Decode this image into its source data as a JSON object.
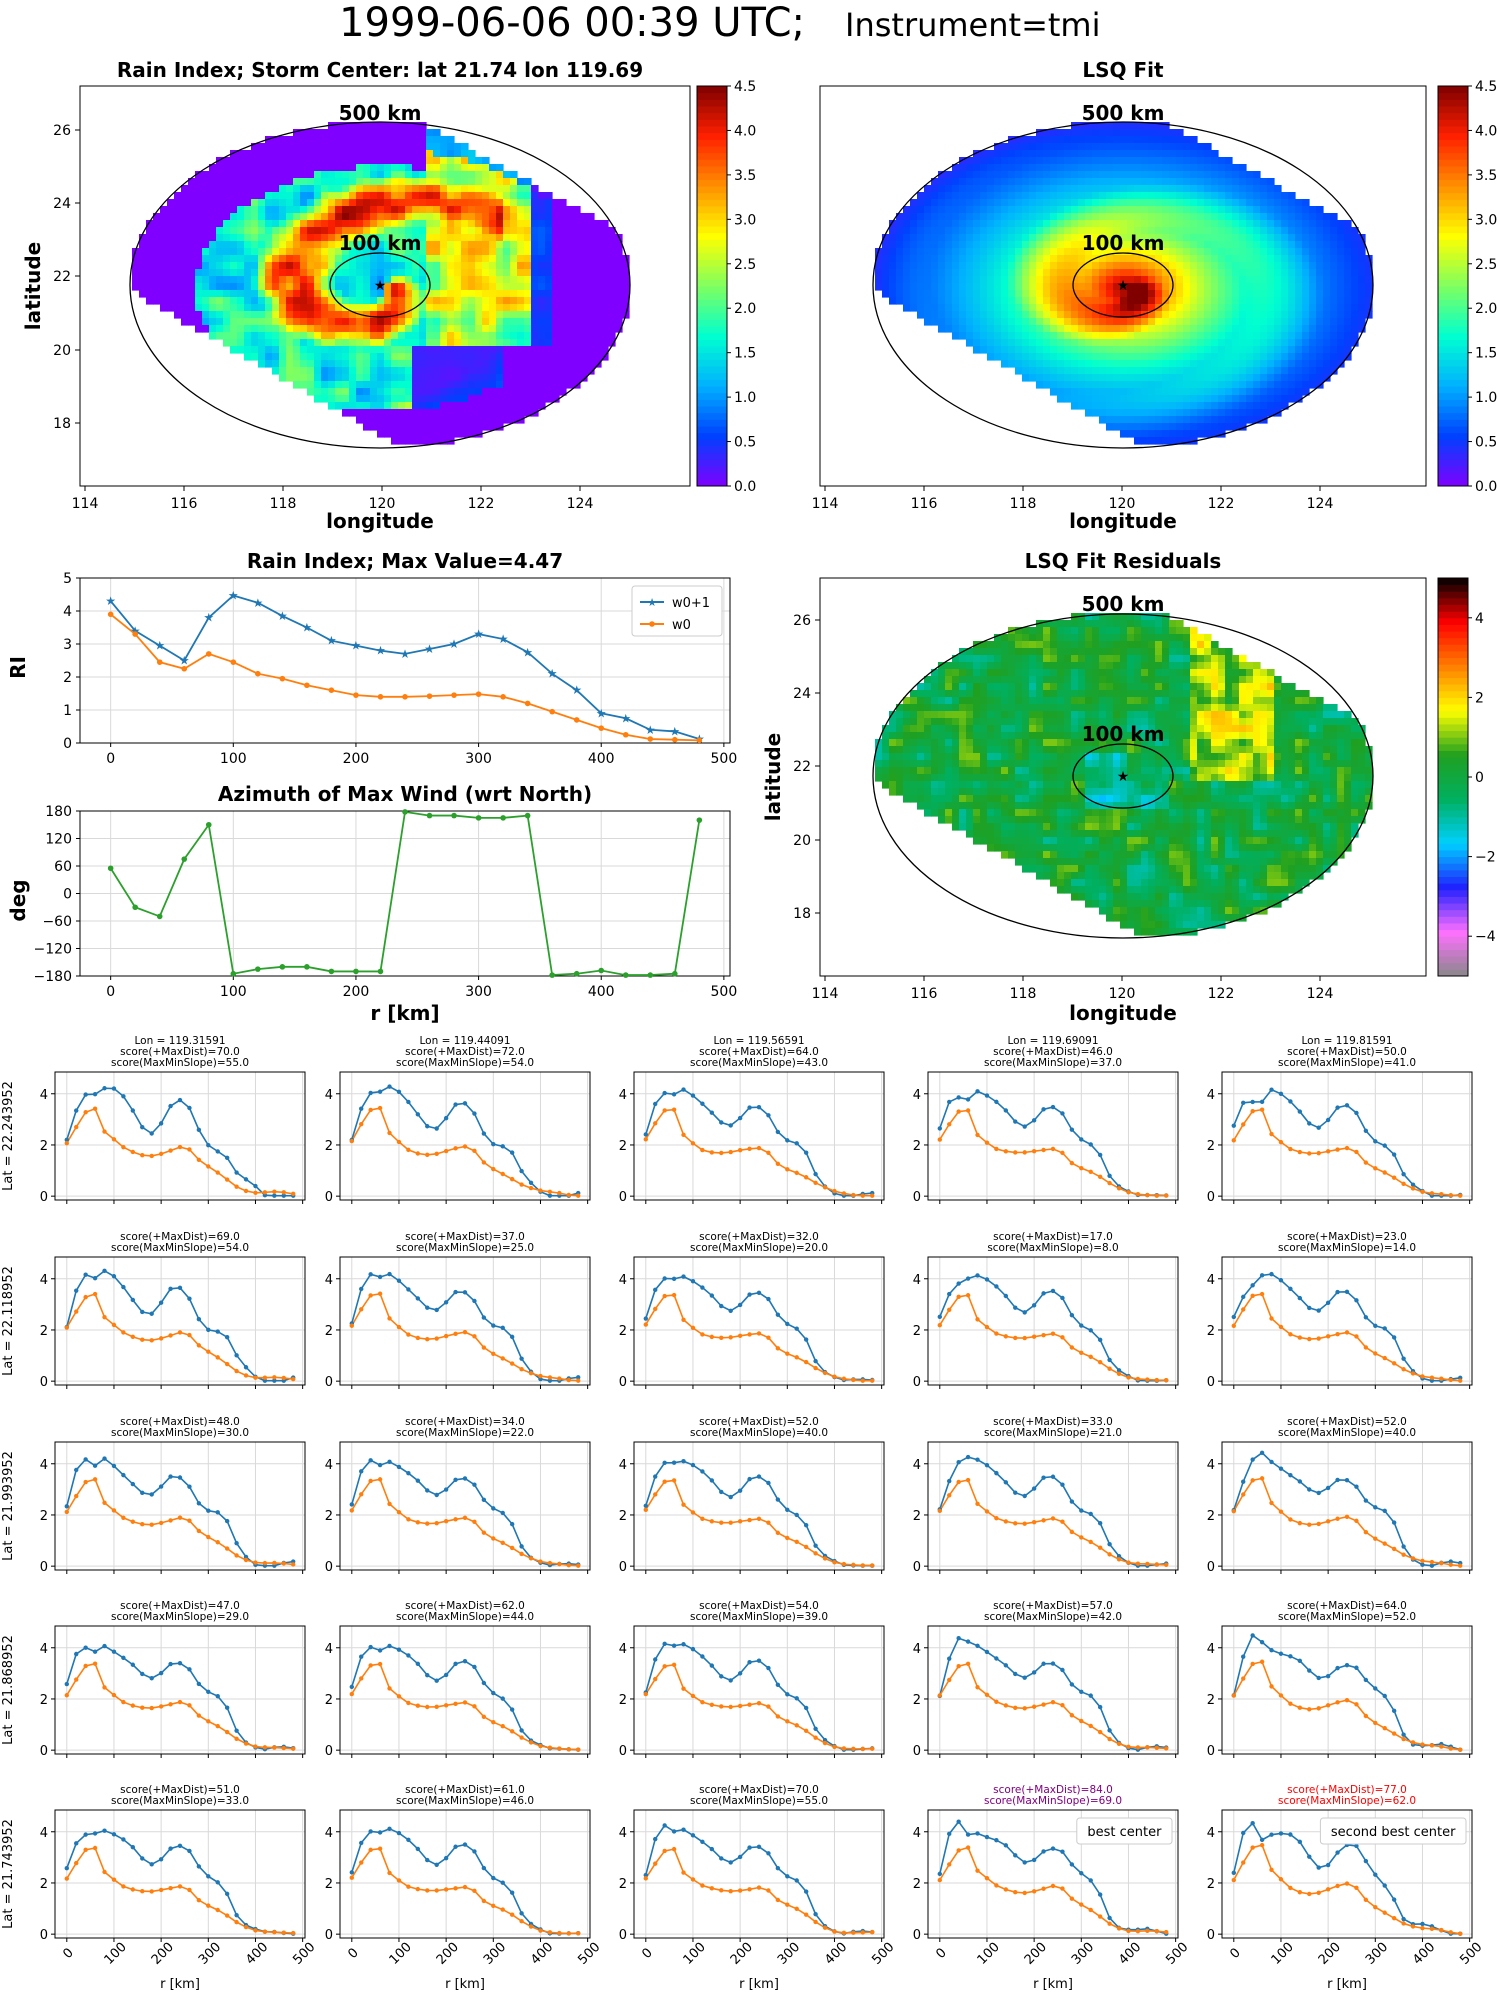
{
  "header": {
    "title_main": "1999-06-06 00:39 UTC;",
    "title_inst": "Instrument=tmi"
  },
  "maps": {
    "rain_index_title": "Rain Index; Storm Center: lat 21.74 lon 119.69",
    "lsq_fit_title": "LSQ Fit",
    "residuals_title": "LSQ Fit Residuals",
    "ring_outer_label": "500 km",
    "ring_inner_label": "100 km",
    "xlabel": "longitude",
    "ylabel": "latitude",
    "xticks": [
      "114",
      "116",
      "118",
      "120",
      "122",
      "124"
    ],
    "yticks": [
      "18",
      "20",
      "22",
      "24",
      "26"
    ],
    "colorbar_ticks": [
      "0.0",
      "0.5",
      "1.0",
      "1.5",
      "2.0",
      "2.5",
      "3.0",
      "3.5",
      "4.0",
      "4.5"
    ],
    "resid_colorbar_ticks": [
      "−4",
      "−2",
      "0",
      "2",
      "4"
    ],
    "colormaps": {
      "jet": [
        "#7f00ff",
        "#0040ff",
        "#00b0ff",
        "#00ffd0",
        "#80ff60",
        "#ffff00",
        "#ff9000",
        "#ff2000",
        "#800000"
      ],
      "residual": [
        "#888888",
        "#ff70ff",
        "#2020ff",
        "#00d0ff",
        "#00b060",
        "#20a020",
        "#ffff00",
        "#ff8000",
        "#ff0000",
        "#000000"
      ]
    }
  },
  "chart_data": [
    {
      "type": "line",
      "title": "Rain Index; Max Value=4.47",
      "ylabel": "RI",
      "x": [
        0,
        20,
        40,
        60,
        80,
        100,
        120,
        140,
        160,
        180,
        200,
        220,
        240,
        260,
        280,
        300,
        320,
        340,
        360,
        380,
        400,
        420,
        440,
        460,
        480
      ],
      "xticks": [
        "0",
        "100",
        "200",
        "300",
        "400",
        "500"
      ],
      "yticks": [
        "0",
        "1",
        "2",
        "3",
        "4",
        "5"
      ],
      "ylim": [
        0,
        5
      ],
      "legend": "top-right",
      "series": [
        {
          "name": "w0+1",
          "color": "#1f77b4",
          "marker": "star",
          "values": [
            4.3,
            3.4,
            2.95,
            2.5,
            3.8,
            4.47,
            4.25,
            3.85,
            3.5,
            3.1,
            2.95,
            2.8,
            2.7,
            2.85,
            3.0,
            3.3,
            3.15,
            2.75,
            2.1,
            1.6,
            0.9,
            0.75,
            0.4,
            0.35,
            0.12
          ]
        },
        {
          "name": "w0",
          "color": "#ff7f0e",
          "marker": "dot",
          "values": [
            3.9,
            3.3,
            2.45,
            2.25,
            2.7,
            2.45,
            2.1,
            1.95,
            1.75,
            1.6,
            1.45,
            1.4,
            1.4,
            1.42,
            1.45,
            1.48,
            1.4,
            1.2,
            0.95,
            0.7,
            0.45,
            0.25,
            0.12,
            0.1,
            0.08
          ]
        }
      ]
    },
    {
      "type": "line",
      "title": "Azimuth of Max Wind (wrt North)",
      "ylabel": "deg",
      "xlabel": "r [km]",
      "x": [
        0,
        20,
        40,
        60,
        80,
        100,
        120,
        140,
        160,
        180,
        200,
        220,
        240,
        260,
        280,
        300,
        320,
        340,
        360,
        380,
        400,
        420,
        440,
        460,
        480
      ],
      "xticks": [
        "0",
        "100",
        "200",
        "300",
        "400",
        "500"
      ],
      "yticks": [
        "180",
        "120",
        "60",
        "0",
        "−60",
        "−120",
        "−180"
      ],
      "ylim": [
        -180,
        180
      ],
      "series": [
        {
          "color": "#2ca02c",
          "values": [
            55,
            -30,
            -50,
            75,
            150,
            -175,
            -165,
            -160,
            -160,
            -170,
            -170,
            -170,
            178,
            170,
            170,
            165,
            165,
            170,
            -178,
            -175,
            -168,
            -178,
            -178,
            -175,
            160
          ]
        }
      ]
    }
  ],
  "grid": {
    "lon_titles": [
      "Lon = 119.31591",
      "Lon = 119.44091",
      "Lon = 119.56591",
      "Lon = 119.69091",
      "Lon = 119.81591"
    ],
    "lat_labels": [
      "Lat = 22.243952",
      "Lat = 22.118952",
      "Lat = 21.993952",
      "Lat = 21.868952",
      "Lat = 21.743952"
    ],
    "xlabel": "r [km]",
    "xticks": [
      "0",
      "100",
      "200",
      "300",
      "400",
      "500"
    ],
    "yticks": [
      "0",
      "2",
      "4"
    ],
    "rows": [
      [
        {
          "s1": "score(+MaxDist)=70.0",
          "s2": "score(MaxMinSlope)=55.0",
          "color": "#000000",
          "legend": ""
        },
        {
          "s1": "score(+MaxDist)=72.0",
          "s2": "score(MaxMinSlope)=54.0",
          "color": "#000000",
          "legend": ""
        },
        {
          "s1": "score(+MaxDist)=64.0",
          "s2": "score(MaxMinSlope)=43.0",
          "color": "#000000",
          "legend": ""
        },
        {
          "s1": "score(+MaxDist)=46.0",
          "s2": "score(MaxMinSlope)=37.0",
          "color": "#000000",
          "legend": ""
        },
        {
          "s1": "score(+MaxDist)=50.0",
          "s2": "score(MaxMinSlope)=41.0",
          "color": "#000000",
          "legend": ""
        }
      ],
      [
        {
          "s1": "score(+MaxDist)=69.0",
          "s2": "score(MaxMinSlope)=54.0",
          "color": "#000000",
          "legend": ""
        },
        {
          "s1": "score(+MaxDist)=37.0",
          "s2": "score(MaxMinSlope)=25.0",
          "color": "#000000",
          "legend": ""
        },
        {
          "s1": "score(+MaxDist)=32.0",
          "s2": "score(MaxMinSlope)=20.0",
          "color": "#000000",
          "legend": ""
        },
        {
          "s1": "score(+MaxDist)=17.0",
          "s2": "score(MaxMinSlope)=8.0",
          "color": "#000000",
          "legend": ""
        },
        {
          "s1": "score(+MaxDist)=23.0",
          "s2": "score(MaxMinSlope)=14.0",
          "color": "#000000",
          "legend": ""
        }
      ],
      [
        {
          "s1": "score(+MaxDist)=48.0",
          "s2": "score(MaxMinSlope)=30.0",
          "color": "#000000",
          "legend": ""
        },
        {
          "s1": "score(+MaxDist)=34.0",
          "s2": "score(MaxMinSlope)=22.0",
          "color": "#000000",
          "legend": ""
        },
        {
          "s1": "score(+MaxDist)=52.0",
          "s2": "score(MaxMinSlope)=40.0",
          "color": "#000000",
          "legend": ""
        },
        {
          "s1": "score(+MaxDist)=33.0",
          "s2": "score(MaxMinSlope)=21.0",
          "color": "#000000",
          "legend": ""
        },
        {
          "s1": "score(+MaxDist)=52.0",
          "s2": "score(MaxMinSlope)=40.0",
          "color": "#000000",
          "legend": ""
        }
      ],
      [
        {
          "s1": "score(+MaxDist)=47.0",
          "s2": "score(MaxMinSlope)=29.0",
          "color": "#000000",
          "legend": ""
        },
        {
          "s1": "score(+MaxDist)=62.0",
          "s2": "score(MaxMinSlope)=44.0",
          "color": "#000000",
          "legend": ""
        },
        {
          "s1": "score(+MaxDist)=54.0",
          "s2": "score(MaxMinSlope)=39.0",
          "color": "#000000",
          "legend": ""
        },
        {
          "s1": "score(+MaxDist)=57.0",
          "s2": "score(MaxMinSlope)=42.0",
          "color": "#000000",
          "legend": ""
        },
        {
          "s1": "score(+MaxDist)=64.0",
          "s2": "score(MaxMinSlope)=52.0",
          "color": "#000000",
          "legend": ""
        }
      ],
      [
        {
          "s1": "score(+MaxDist)=51.0",
          "s2": "score(MaxMinSlope)=33.0",
          "color": "#000000",
          "legend": ""
        },
        {
          "s1": "score(+MaxDist)=61.0",
          "s2": "score(MaxMinSlope)=46.0",
          "color": "#000000",
          "legend": ""
        },
        {
          "s1": "score(+MaxDist)=70.0",
          "s2": "score(MaxMinSlope)=55.0",
          "color": "#000000",
          "legend": ""
        },
        {
          "s1": "score(+MaxDist)=84.0",
          "s2": "score(MaxMinSlope)=69.0",
          "color": "#800080",
          "legend": "best center"
        },
        {
          "s1": "score(+MaxDist)=77.0",
          "s2": "score(MaxMinSlope)=62.0",
          "color": "#ff0000",
          "legend": "second best center"
        }
      ]
    ],
    "blue_base": [
      2.4,
      3.6,
      4.05,
      3.95,
      4.1,
      3.95,
      3.7,
      3.35,
      2.9,
      2.7,
      2.95,
      3.4,
      3.5,
      3.25,
      2.6,
      2.2,
      2.0,
      1.6,
      0.8,
      0.4,
      0.2,
      0.05,
      0.03,
      0.02,
      0.02
    ],
    "orange_base": [
      2.2,
      2.8,
      3.3,
      3.35,
      2.4,
      2.1,
      1.85,
      1.75,
      1.7,
      1.7,
      1.75,
      1.8,
      1.85,
      1.7,
      1.3,
      1.1,
      0.95,
      0.75,
      0.5,
      0.3,
      0.15,
      0.08,
      0.05,
      0.03,
      0.03
    ]
  }
}
